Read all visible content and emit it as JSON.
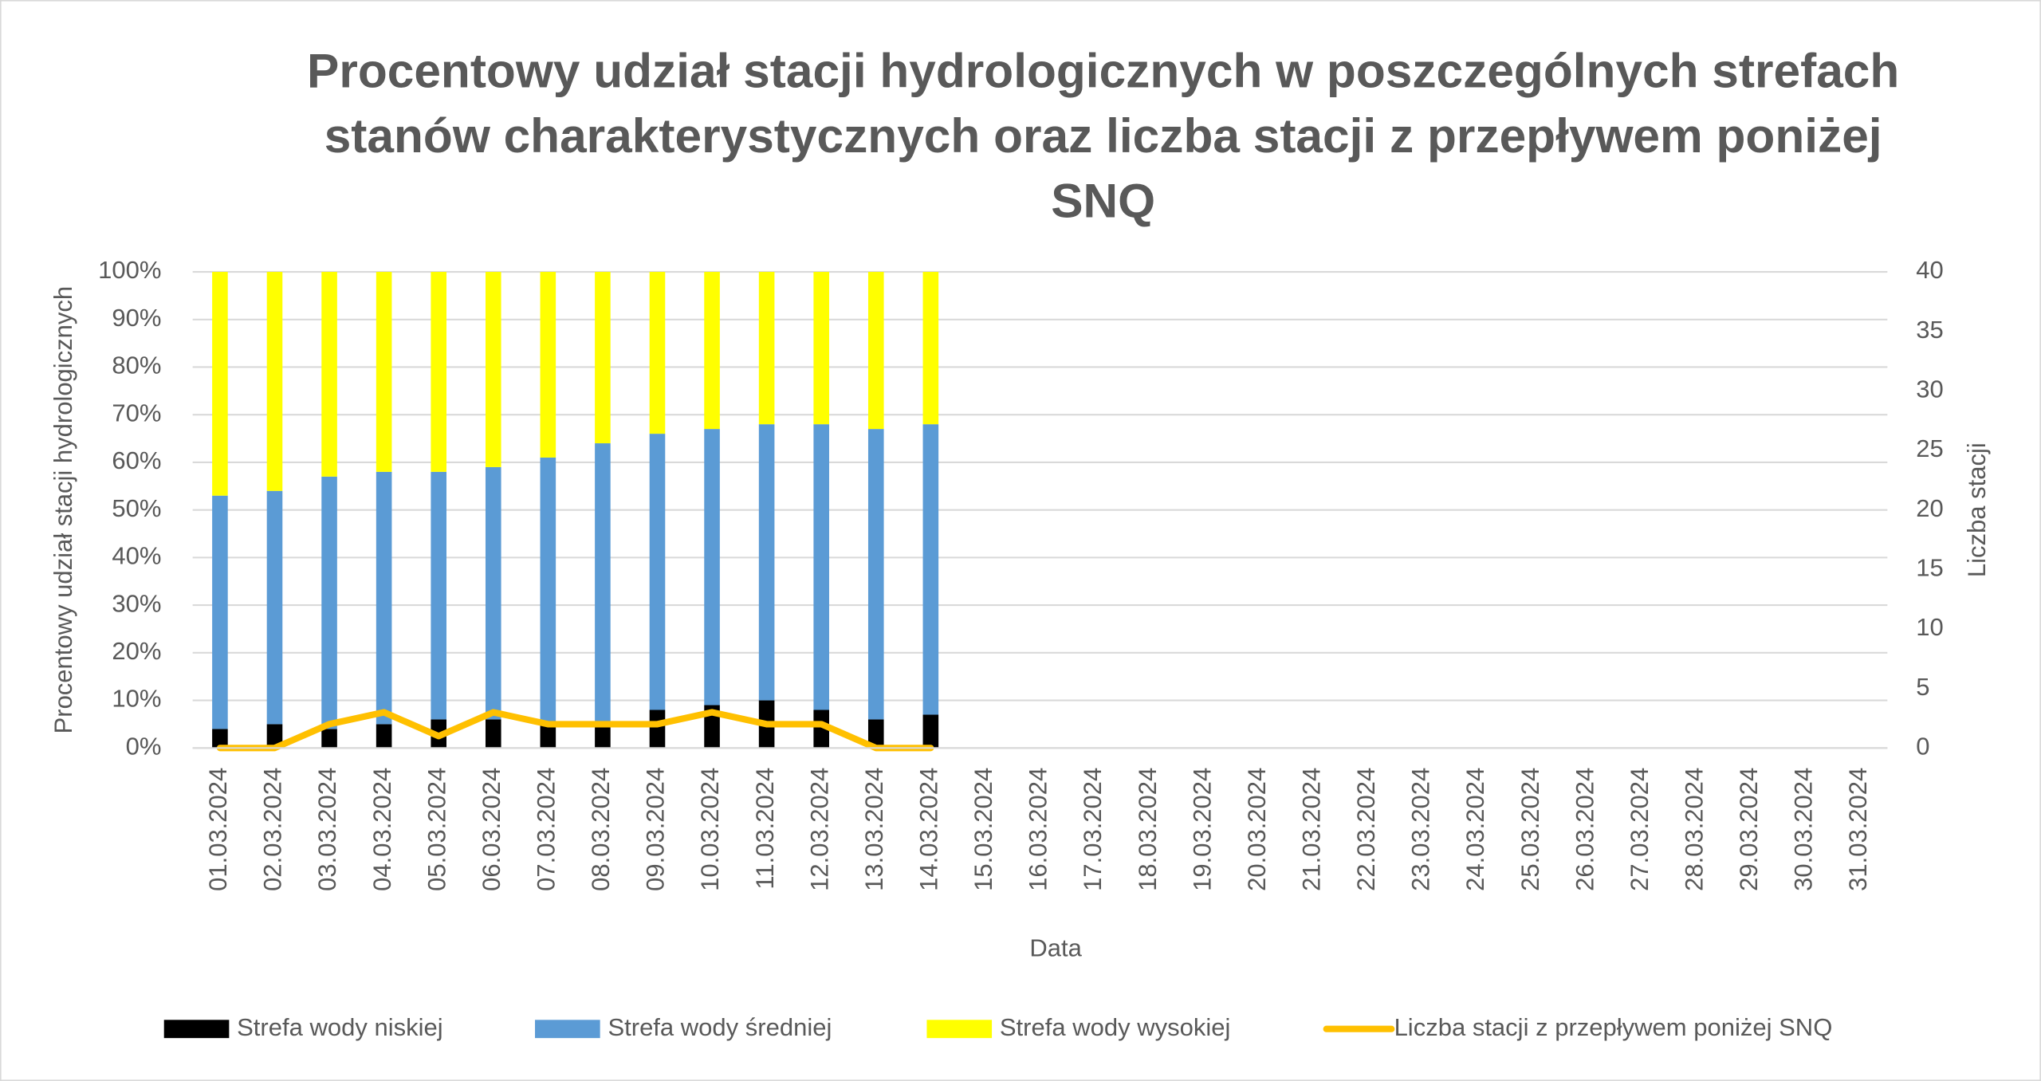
{
  "chart_data": {
    "type": "bar",
    "stacked": true,
    "title": "Procentowy udział stacji hydrologicznych w poszczególnych strefach stanów charakterystycznych oraz liczba stacji z przepływem poniżej SNQ",
    "x_label": "Data",
    "y_label": "Procentowy udział stacji hydrologicznych",
    "y2_label": "Liczba stacji",
    "categories": [
      "01.03.2024",
      "02.03.2024",
      "03.03.2024",
      "04.03.2024",
      "05.03.2024",
      "06.03.2024",
      "07.03.2024",
      "08.03.2024",
      "09.03.2024",
      "10.03.2024",
      "11.03.2024",
      "12.03.2024",
      "13.03.2024",
      "14.03.2024",
      "15.03.2024",
      "16.03.2024",
      "17.03.2024",
      "18.03.2024",
      "19.03.2024",
      "20.03.2024",
      "21.03.2024",
      "22.03.2024",
      "23.03.2024",
      "24.03.2024",
      "25.03.2024",
      "26.03.2024",
      "27.03.2024",
      "28.03.2024",
      "29.03.2024",
      "30.03.2024",
      "31.03.2024"
    ],
    "series": [
      {
        "name": "Strefa wody niskiej",
        "color": "#000000",
        "type": "bar",
        "values": [
          4,
          5,
          4,
          5,
          6,
          6,
          5,
          5,
          8,
          9,
          10,
          8,
          6,
          7,
          null,
          null,
          null,
          null,
          null,
          null,
          null,
          null,
          null,
          null,
          null,
          null,
          null,
          null,
          null,
          null,
          null
        ]
      },
      {
        "name": "Strefa wody średniej",
        "color": "#5b9bd5",
        "type": "bar",
        "values": [
          49,
          49,
          53,
          53,
          52,
          53,
          56,
          59,
          58,
          58,
          58,
          60,
          61,
          61,
          null,
          null,
          null,
          null,
          null,
          null,
          null,
          null,
          null,
          null,
          null,
          null,
          null,
          null,
          null,
          null,
          null
        ]
      },
      {
        "name": "Strefa wody wysokiej",
        "color": "#ffff00",
        "type": "bar",
        "values": [
          47,
          46,
          43,
          42,
          42,
          41,
          39,
          36,
          34,
          33,
          32,
          32,
          33,
          32,
          null,
          null,
          null,
          null,
          null,
          null,
          null,
          null,
          null,
          null,
          null,
          null,
          null,
          null,
          null,
          null,
          null
        ]
      },
      {
        "name": "Liczba stacji z przepływem poniżej SNQ",
        "color": "#ffc000",
        "type": "line",
        "axis": "y2",
        "values": [
          0,
          0,
          2,
          3,
          1,
          3,
          2,
          2,
          2,
          3,
          2,
          2,
          0,
          0,
          null,
          null,
          null,
          null,
          null,
          null,
          null,
          null,
          null,
          null,
          null,
          null,
          null,
          null,
          null,
          null,
          null
        ]
      }
    ],
    "ylim": [
      0,
      100
    ],
    "yticks": [
      {
        "value": 0,
        "label": "0%"
      },
      {
        "value": 10,
        "label": "10%"
      },
      {
        "value": 20,
        "label": "20%"
      },
      {
        "value": 30,
        "label": "30%"
      },
      {
        "value": 40,
        "label": "40%"
      },
      {
        "value": 50,
        "label": "50%"
      },
      {
        "value": 60,
        "label": "60%"
      },
      {
        "value": 70,
        "label": "70%"
      },
      {
        "value": 80,
        "label": "80%"
      },
      {
        "value": 90,
        "label": "90%"
      },
      {
        "value": 100,
        "label": "100%"
      }
    ],
    "y2lim": [
      0,
      40
    ],
    "y2ticks": [
      0,
      5,
      10,
      15,
      20,
      25,
      30,
      35,
      40
    ],
    "grid": true,
    "legend": "bottom"
  }
}
